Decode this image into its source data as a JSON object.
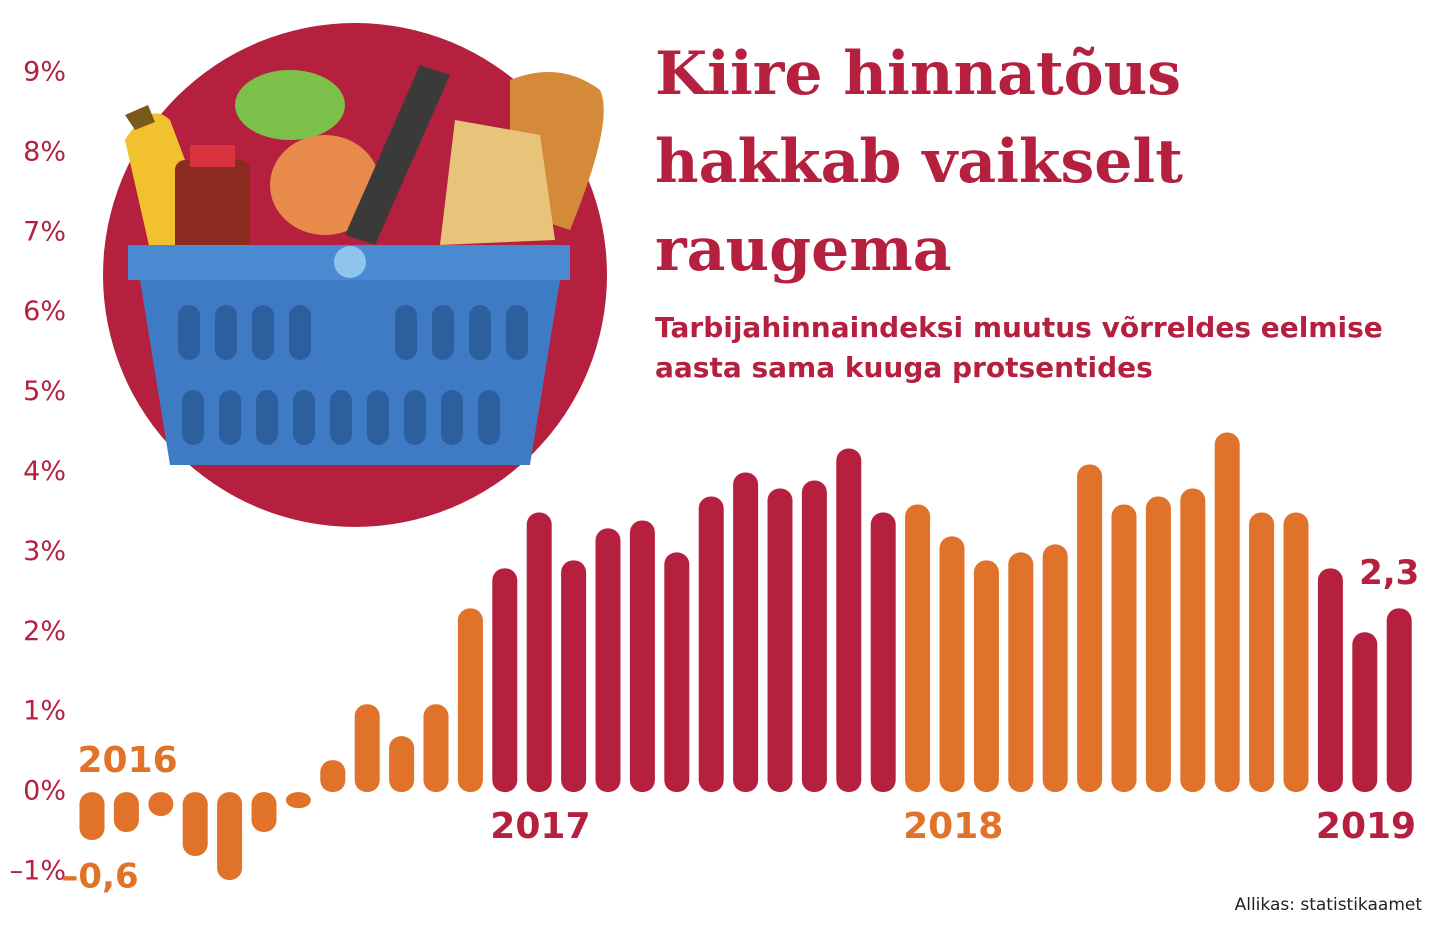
{
  "chart_data": {
    "type": "bar",
    "title": "Kiire hinnatõus hakkab vaikselt raugema",
    "subtitle": "Tarbijahinnaindeksi muutus võrreldes eelmise aasta sama kuuga protsentides",
    "source": "Allikas: statistikaamet",
    "categories": [
      "2016",
      null,
      null,
      null,
      null,
      null,
      null,
      null,
      null,
      null,
      null,
      null,
      "2017",
      null,
      null,
      null,
      null,
      null,
      null,
      null,
      null,
      null,
      null,
      null,
      "2018",
      null,
      null,
      null,
      null,
      null,
      null,
      null,
      null,
      null,
      null,
      null,
      "2019",
      null,
      null
    ],
    "values": [
      -0.6,
      -0.5,
      -0.3,
      -0.8,
      -1.1,
      -0.5,
      -0.2,
      0.4,
      1.1,
      0.7,
      1.1,
      2.3,
      2.8,
      3.5,
      2.9,
      3.3,
      3.4,
      3.0,
      3.7,
      4.0,
      3.8,
      3.9,
      4.3,
      3.5,
      3.6,
      3.2,
      2.9,
      3.0,
      3.1,
      4.1,
      3.6,
      3.7,
      3.8,
      4.5,
      3.5,
      3.5,
      2.8,
      2.0,
      2.3
    ],
    "value_labels": [
      "–0,6",
      null,
      null,
      null,
      null,
      null,
      null,
      null,
      null,
      null,
      null,
      null,
      null,
      null,
      null,
      null,
      null,
      null,
      null,
      null,
      null,
      null,
      null,
      null,
      null,
      null,
      null,
      null,
      null,
      null,
      null,
      null,
      null,
      null,
      null,
      null,
      null,
      null,
      "2,3"
    ],
    "colors": [
      "#e0722a",
      "#e0722a",
      "#e0722a",
      "#e0722a",
      "#e0722a",
      "#e0722a",
      "#e0722a",
      "#e0722a",
      "#e0722a",
      "#e0722a",
      "#e0722a",
      "#e0722a",
      "#b5203f",
      "#b5203f",
      "#b5203f",
      "#b5203f",
      "#b5203f",
      "#b5203f",
      "#b5203f",
      "#b5203f",
      "#b5203f",
      "#b5203f",
      "#b5203f",
      "#b5203f",
      "#e0722a",
      "#e0722a",
      "#e0722a",
      "#e0722a",
      "#e0722a",
      "#e0722a",
      "#e0722a",
      "#e0722a",
      "#e0722a",
      "#e0722a",
      "#e0722a",
      "#e0722a",
      "#b5203f",
      "#b5203f",
      "#b5203f"
    ],
    "ylim": [
      -1,
      9
    ],
    "yticks": [
      {
        "value": -1,
        "label": "–1%"
      },
      {
        "value": 0,
        "label": "0%"
      },
      {
        "value": 1,
        "label": "1%"
      },
      {
        "value": 2,
        "label": "2%"
      },
      {
        "value": 3,
        "label": "3%"
      },
      {
        "value": 4,
        "label": "4%"
      },
      {
        "value": 5,
        "label": "5%"
      },
      {
        "value": 6,
        "label": "6%"
      },
      {
        "value": 7,
        "label": "7%"
      },
      {
        "value": 8,
        "label": "8%"
      },
      {
        "value": 9,
        "label": "9%"
      }
    ],
    "grid": false
  }
}
